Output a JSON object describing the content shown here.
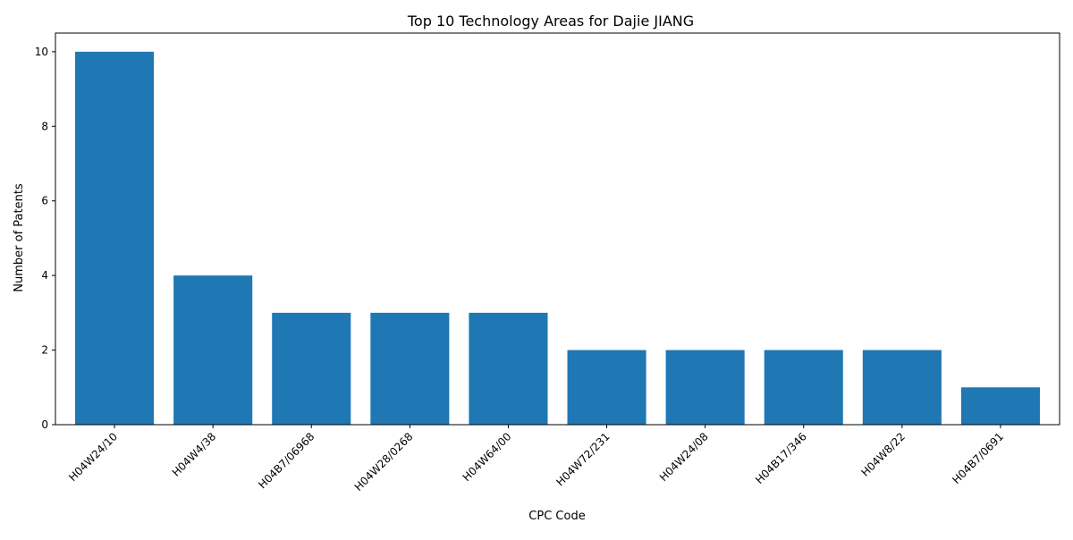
{
  "chart_data": {
    "type": "bar",
    "title": "Top 10 Technology Areas for Dajie JIANG",
    "xlabel": "CPC Code",
    "ylabel": "Number of Patents",
    "categories": [
      "H04W24/10",
      "H04W4/38",
      "H04B7/06968",
      "H04W28/0268",
      "H04W64/00",
      "H04W72/231",
      "H04W24/08",
      "H04B17/346",
      "H04W8/22",
      "H04B7/0691"
    ],
    "values": [
      10,
      4,
      3,
      3,
      3,
      2,
      2,
      2,
      2,
      1
    ],
    "ylim": [
      0,
      10.5
    ],
    "yticks": [
      0,
      2,
      4,
      6,
      8,
      10
    ],
    "grid": false,
    "legend": "none",
    "bar_color": "#1f77b4"
  }
}
